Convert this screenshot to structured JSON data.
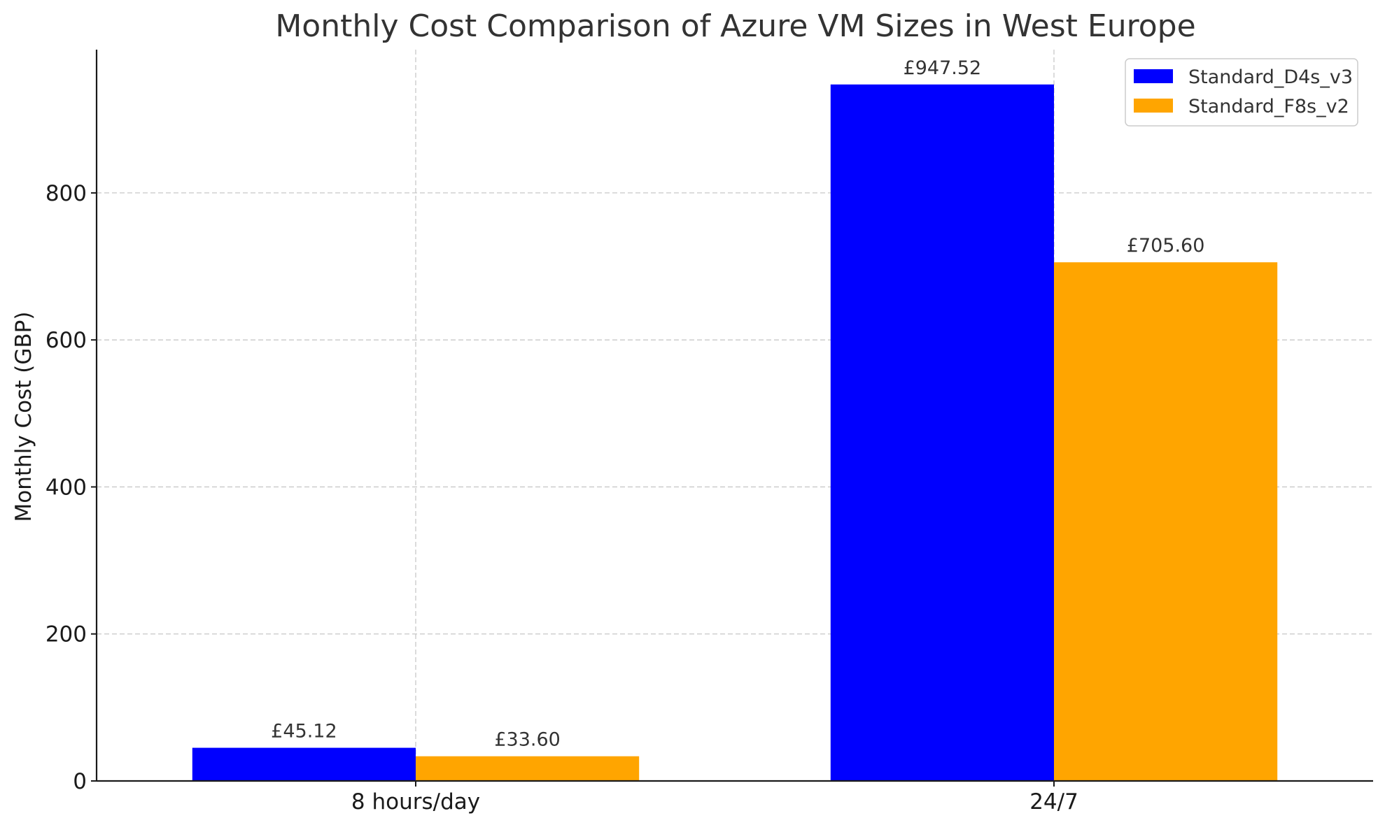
{
  "chart_data": {
    "type": "bar",
    "title": "Monthly Cost Comparison of Azure VM Sizes in West Europe",
    "xlabel": "",
    "ylabel": "Monthly Cost (GBP)",
    "categories": [
      "8 hours/day",
      "24/7"
    ],
    "series": [
      {
        "name": "Standard_D4s_v3",
        "color": "#0000ff",
        "values": [
          45.12,
          947.52
        ],
        "labels": [
          "£45.12",
          "£947.52"
        ]
      },
      {
        "name": "Standard_F8s_v2",
        "color": "#ffa500",
        "values": [
          33.6,
          705.6
        ],
        "labels": [
          "£33.60",
          "£705.60"
        ]
      }
    ],
    "ylim": [
      0,
      994.9
    ],
    "yticks": [
      0,
      200,
      400,
      600,
      800
    ],
    "grid": true,
    "legend_position": "top-right"
  }
}
